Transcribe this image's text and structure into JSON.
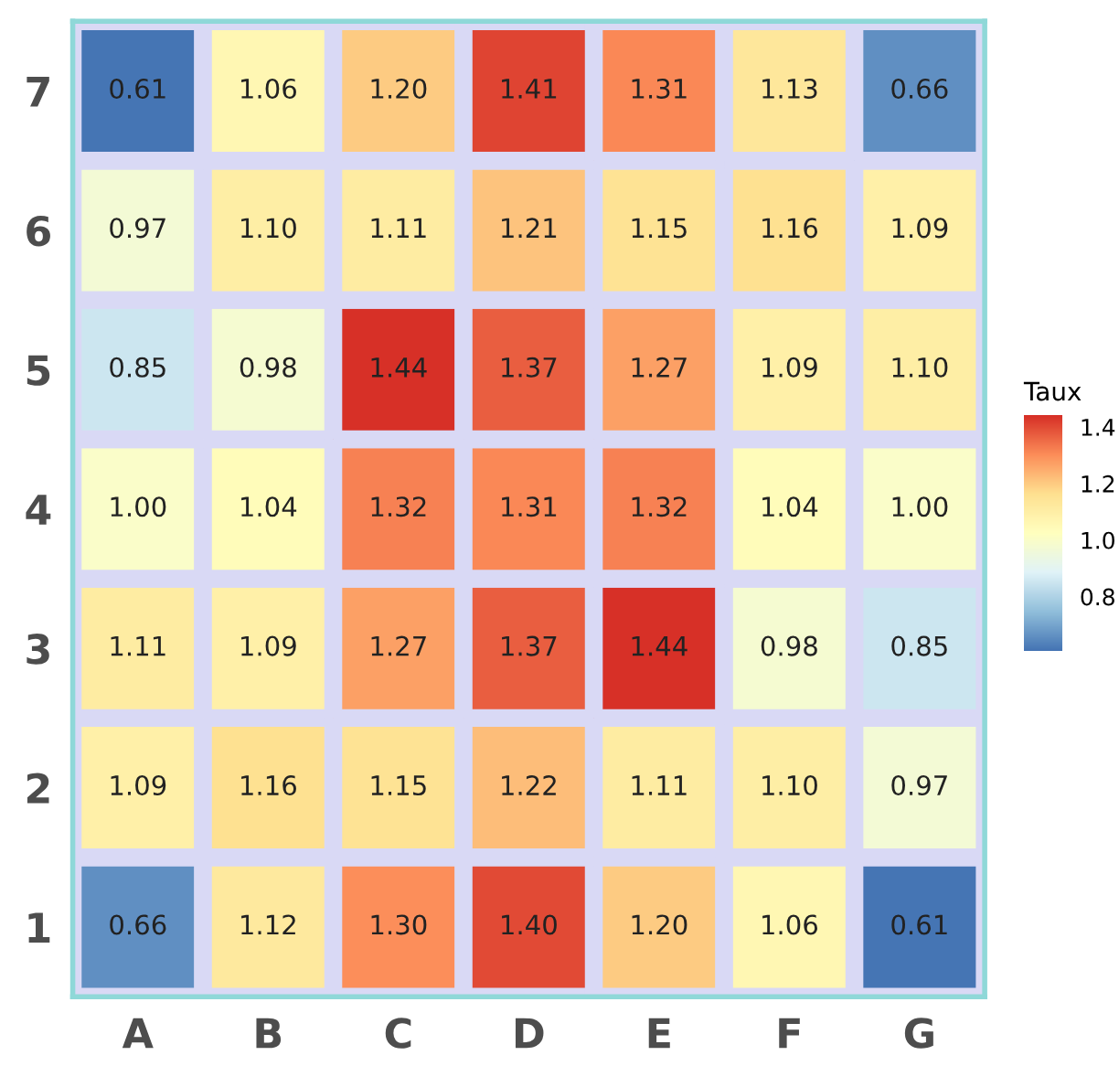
{
  "chart_data": {
    "type": "heatmap",
    "legend_title": "Taux",
    "categories": [
      "A",
      "B",
      "C",
      "D",
      "E",
      "F",
      "G"
    ],
    "y_categories": [
      "7",
      "6",
      "5",
      "4",
      "3",
      "2",
      "1"
    ],
    "cells": [
      [
        0.61,
        1.06,
        1.2,
        1.41,
        1.31,
        1.13,
        0.66
      ],
      [
        0.97,
        1.1,
        1.11,
        1.21,
        1.15,
        1.16,
        1.09
      ],
      [
        0.85,
        0.98,
        1.44,
        1.37,
        1.27,
        1.09,
        1.1
      ],
      [
        1.0,
        1.04,
        1.32,
        1.31,
        1.32,
        1.04,
        1.0
      ],
      [
        1.11,
        1.09,
        1.27,
        1.37,
        1.44,
        0.98,
        0.85
      ],
      [
        1.09,
        1.16,
        1.15,
        1.22,
        1.11,
        1.1,
        0.97
      ],
      [
        0.66,
        1.12,
        1.3,
        1.4,
        1.2,
        1.06,
        0.61
      ]
    ],
    "cell_labels": [
      [
        "0.61",
        "1.06",
        "1.20",
        "1.41",
        "1.31",
        "1.13",
        "0.66"
      ],
      [
        "0.97",
        "1.10",
        "1.11",
        "1.21",
        "1.15",
        "1.16",
        "1.09"
      ],
      [
        "0.85",
        "0.98",
        "1.44",
        "1.37",
        "1.27",
        "1.09",
        "1.10"
      ],
      [
        "1.00",
        "1.04",
        "1.32",
        "1.31",
        "1.32",
        "1.04",
        "1.00"
      ],
      [
        "1.11",
        "1.09",
        "1.27",
        "1.37",
        "1.44",
        "0.98",
        "0.85"
      ],
      [
        "1.09",
        "1.16",
        "1.15",
        "1.22",
        "1.11",
        "1.10",
        "0.97"
      ],
      [
        "0.66",
        "1.12",
        "1.30",
        "1.40",
        "1.20",
        "1.06",
        "0.61"
      ]
    ],
    "clim": [
      0.61,
      1.44
    ],
    "cticks": [
      {
        "value": 0.8,
        "label": "0.8"
      },
      {
        "value": 1.0,
        "label": "1.0"
      },
      {
        "value": 1.2,
        "label": "1.2"
      },
      {
        "value": 1.4,
        "label": "1.4"
      }
    ]
  }
}
